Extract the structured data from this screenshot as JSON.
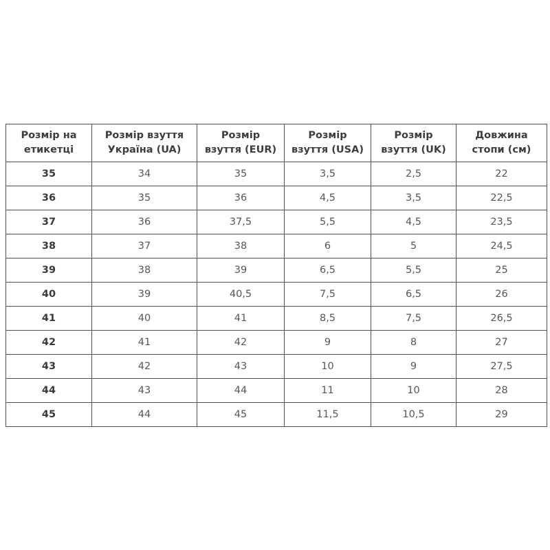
{
  "chart_data": {
    "type": "table",
    "columns": [
      "Розмір на етикетці",
      "Розмір взуття Україна (UA)",
      "Розмір взуття (EUR)",
      "Розмір взуття (USA)",
      "Розмір взуття (UK)",
      "Довжина стопи (см)"
    ],
    "rows": [
      [
        "35",
        "34",
        "35",
        "3,5",
        "2,5",
        "22"
      ],
      [
        "36",
        "35",
        "36",
        "4,5",
        "3,5",
        "22,5"
      ],
      [
        "37",
        "36",
        "37,5",
        "5,5",
        "4,5",
        "23,5"
      ],
      [
        "38",
        "37",
        "38",
        "6",
        "5",
        "24,5"
      ],
      [
        "39",
        "38",
        "39",
        "6,5",
        "5,5",
        "25"
      ],
      [
        "40",
        "39",
        "40,5",
        "7,5",
        "6,5",
        "26"
      ],
      [
        "41",
        "40",
        "41",
        "8,5",
        "7,5",
        "26,5"
      ],
      [
        "42",
        "41",
        "42",
        "9",
        "8",
        "27"
      ],
      [
        "43",
        "42",
        "43",
        "10",
        "9",
        "27,5"
      ],
      [
        "44",
        "43",
        "44",
        "11",
        "10",
        "28"
      ],
      [
        "45",
        "44",
        "45",
        "11,5",
        "10,5",
        "29"
      ]
    ],
    "layout": {
      "border_color": "#4f4f4f",
      "header_text_color": "#3d3d3d",
      "cell_text_color": "#565656",
      "background_color": "#ffffff"
    }
  }
}
